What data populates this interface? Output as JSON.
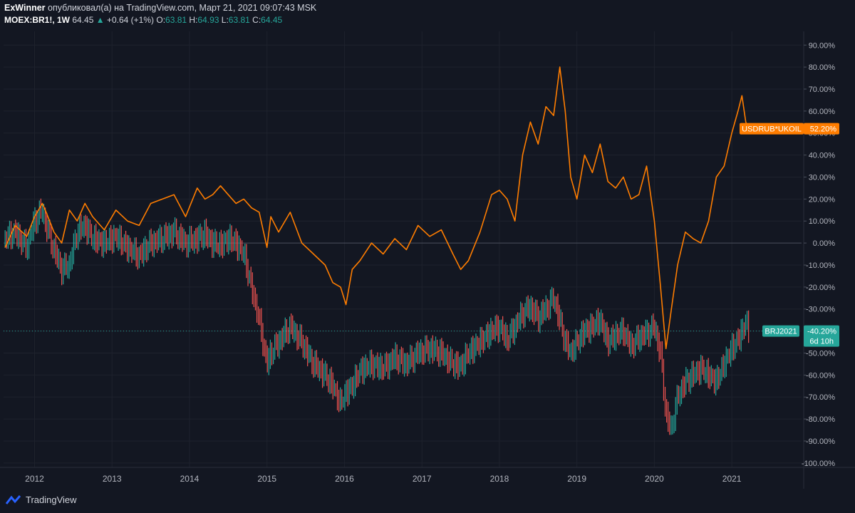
{
  "header": {
    "author": "ExWinner",
    "published": "опубликовал(а) на TradingView.com, Март 21, 2021 09:07:43 MSK",
    "symbol": "MOEX:BR1!, 1W",
    "last": "64.45",
    "change": "+0.64 (+1%)",
    "o_label": "O:",
    "o": "63.81",
    "h_label": "H:",
    "h": "64.93",
    "l_label": "L:",
    "l": "63.81",
    "c_label": "C:",
    "c": "64.45"
  },
  "footer": {
    "brand": "TradingView"
  },
  "colors": {
    "background": "#131722",
    "orange": "#ff7d00",
    "up": "#26a69a",
    "down": "#ef5350",
    "grid": "#1f2433",
    "axis_text": "#b2b5be"
  },
  "chart_data": {
    "type": "line",
    "title": "",
    "ylabel": "",
    "xlabel": "",
    "y_unit": "%",
    "ylim": [
      -100,
      90
    ],
    "xlim": [
      2011.6,
      2021.9
    ],
    "y_ticks": [
      "90.00%",
      "80.00%",
      "70.00%",
      "60.00%",
      "50.00%",
      "40.00%",
      "30.00%",
      "20.00%",
      "10.00%",
      "0.00%",
      "-10.00%",
      "-20.00%",
      "-30.00%",
      "-40.00%",
      "-50.00%",
      "-60.00%",
      "-70.00%",
      "-80.00%",
      "-90.00%",
      "-100.00%"
    ],
    "y_tick_values": [
      90,
      80,
      70,
      60,
      50,
      40,
      30,
      20,
      10,
      0,
      -10,
      -20,
      -30,
      -40,
      -50,
      -60,
      -70,
      -80,
      -90,
      -100
    ],
    "x_ticks": [
      "2012",
      "2013",
      "2014",
      "2015",
      "2016",
      "2017",
      "2018",
      "2019",
      "2020",
      "2021"
    ],
    "x_tick_values": [
      2012,
      2013,
      2014,
      2015,
      2016,
      2017,
      2018,
      2019,
      2020,
      2021
    ],
    "grid": true,
    "baseline": 0,
    "series": [
      {
        "name": "USDRUB*UKOIL",
        "color": "#ff7d00",
        "style": "line",
        "last_label": "52.20%",
        "x": [
          2011.62,
          2011.75,
          2011.9,
          2012.0,
          2012.1,
          2012.15,
          2012.25,
          2012.35,
          2012.45,
          2012.55,
          2012.65,
          2012.75,
          2012.9,
          2013.05,
          2013.2,
          2013.35,
          2013.5,
          2013.65,
          2013.8,
          2013.95,
          2014.1,
          2014.2,
          2014.3,
          2014.4,
          2014.5,
          2014.6,
          2014.7,
          2014.8,
          2014.9,
          2015.0,
          2015.05,
          2015.15,
          2015.3,
          2015.45,
          2015.6,
          2015.75,
          2015.85,
          2015.95,
          2016.02,
          2016.1,
          2016.2,
          2016.35,
          2016.5,
          2016.65,
          2016.8,
          2016.95,
          2017.1,
          2017.25,
          2017.4,
          2017.5,
          2017.6,
          2017.75,
          2017.9,
          2018.0,
          2018.1,
          2018.2,
          2018.3,
          2018.4,
          2018.5,
          2018.6,
          2018.7,
          2018.78,
          2018.85,
          2018.92,
          2019.0,
          2019.1,
          2019.2,
          2019.3,
          2019.4,
          2019.5,
          2019.6,
          2019.7,
          2019.8,
          2019.9,
          2020.0,
          2020.08,
          2020.15,
          2020.22,
          2020.3,
          2020.4,
          2020.5,
          2020.6,
          2020.7,
          2020.8,
          2020.9,
          2021.0,
          2021.08,
          2021.13,
          2021.18,
          2021.22
        ],
        "y": [
          -2,
          8,
          3,
          12,
          18,
          14,
          5,
          0,
          15,
          10,
          18,
          12,
          6,
          15,
          10,
          8,
          18,
          20,
          22,
          12,
          25,
          20,
          22,
          26,
          22,
          18,
          20,
          16,
          14,
          -2,
          12,
          5,
          14,
          0,
          -5,
          -10,
          -18,
          -20,
          -28,
          -12,
          -8,
          0,
          -5,
          2,
          -3,
          8,
          3,
          6,
          -5,
          -12,
          -8,
          5,
          22,
          24,
          20,
          10,
          40,
          55,
          45,
          62,
          58,
          80,
          60,
          30,
          20,
          40,
          32,
          45,
          28,
          25,
          30,
          20,
          22,
          35,
          10,
          -20,
          -48,
          -30,
          -10,
          5,
          2,
          0,
          10,
          30,
          35,
          50,
          60,
          67,
          55,
          52
        ]
      },
      {
        "name": "BRJ2021",
        "color": "#26a69a",
        "down_color": "#ef5350",
        "style": "bars",
        "last_label": "-40.20%",
        "countdown": "6d 10h",
        "x": [
          2011.62,
          2011.75,
          2011.9,
          2012.0,
          2012.1,
          2012.15,
          2012.25,
          2012.35,
          2012.45,
          2012.55,
          2012.65,
          2012.75,
          2012.9,
          2013.05,
          2013.2,
          2013.35,
          2013.5,
          2013.65,
          2013.8,
          2013.95,
          2014.1,
          2014.2,
          2014.3,
          2014.4,
          2014.5,
          2014.6,
          2014.7,
          2014.8,
          2014.9,
          2015.0,
          2015.05,
          2015.15,
          2015.3,
          2015.45,
          2015.6,
          2015.75,
          2015.85,
          2015.95,
          2016.02,
          2016.1,
          2016.2,
          2016.35,
          2016.5,
          2016.65,
          2016.8,
          2016.95,
          2017.1,
          2017.25,
          2017.4,
          2017.5,
          2017.6,
          2017.75,
          2017.9,
          2018.0,
          2018.1,
          2018.2,
          2018.3,
          2018.4,
          2018.5,
          2018.6,
          2018.7,
          2018.78,
          2018.85,
          2018.92,
          2019.0,
          2019.1,
          2019.2,
          2019.3,
          2019.4,
          2019.5,
          2019.6,
          2019.7,
          2019.8,
          2019.9,
          2020.0,
          2020.08,
          2020.15,
          2020.22,
          2020.3,
          2020.4,
          2020.5,
          2020.6,
          2020.7,
          2020.8,
          2020.9,
          2021.0,
          2021.08,
          2021.13,
          2021.18,
          2021.22
        ],
        "y": [
          2,
          5,
          -2,
          10,
          15,
          8,
          -3,
          -12,
          -10,
          5,
          8,
          2,
          0,
          3,
          -2,
          -6,
          0,
          2,
          5,
          0,
          2,
          4,
          0,
          -1,
          2,
          0,
          -5,
          -20,
          -35,
          -55,
          -50,
          -45,
          -38,
          -45,
          -55,
          -60,
          -65,
          -73,
          -68,
          -65,
          -58,
          -55,
          -57,
          -52,
          -55,
          -50,
          -48,
          -50,
          -55,
          -56,
          -50,
          -45,
          -40,
          -38,
          -44,
          -38,
          -32,
          -29,
          -34,
          -30,
          -25,
          -35,
          -45,
          -50,
          -45,
          -40,
          -38,
          -35,
          -45,
          -42,
          -40,
          -47,
          -43,
          -41,
          -38,
          -50,
          -78,
          -85,
          -70,
          -63,
          -60,
          -57,
          -60,
          -63,
          -55,
          -48,
          -44,
          -40,
          -36,
          -40
        ]
      }
    ]
  }
}
